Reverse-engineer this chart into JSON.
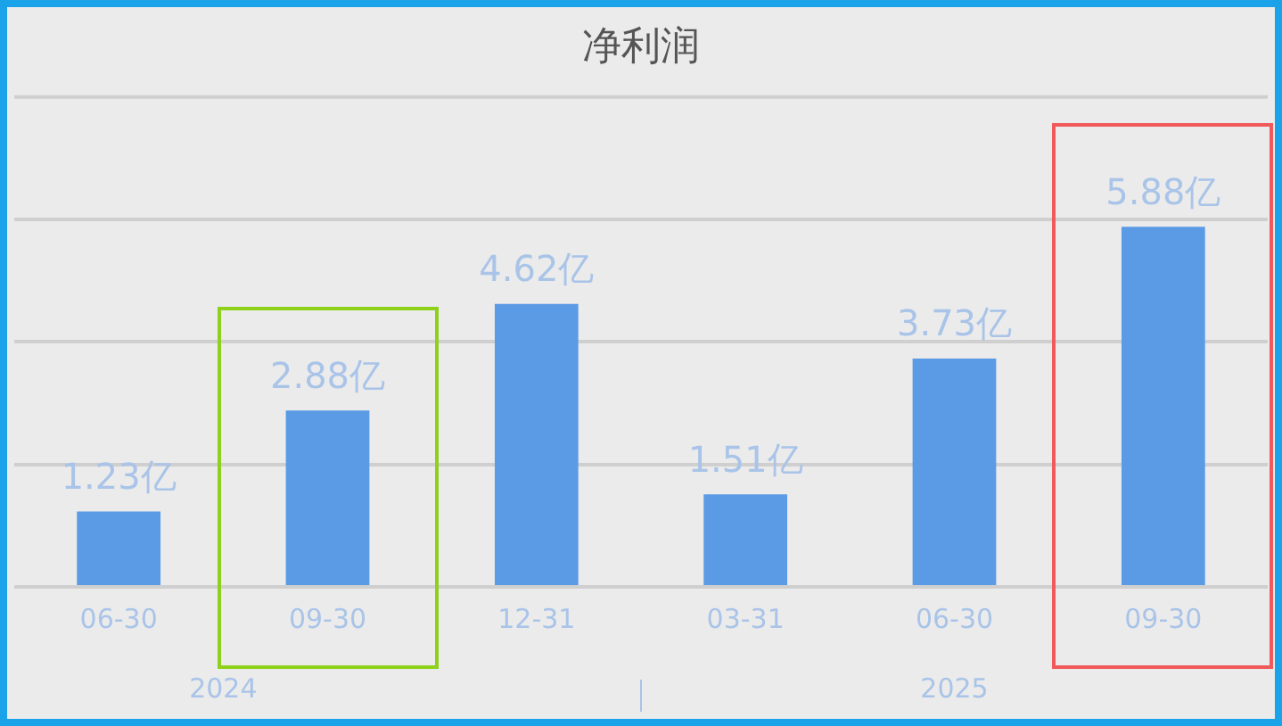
{
  "chart_data": {
    "type": "bar",
    "title": "净利润",
    "categories": [
      "06-30",
      "09-30",
      "12-31",
      "03-31",
      "06-30",
      "09-30"
    ],
    "values": [
      1.23,
      2.88,
      4.62,
      1.51,
      3.73,
      5.88
    ],
    "value_labels": [
      "1.23亿",
      "2.88亿",
      "4.62亿",
      "1.51亿",
      "3.73亿",
      "5.88亿"
    ],
    "color": "#5b9be6",
    "ylim": [
      0,
      8
    ],
    "yticks": [
      {
        "value": 0,
        "label": null
      },
      {
        "value": 2,
        "label": null
      },
      {
        "value": 4,
        "label": null
      },
      {
        "value": 6,
        "label": null
      }
    ],
    "grid": "y",
    "tick_labels": "x",
    "annotations": [
      "2024",
      "2025"
    ]
  }
}
